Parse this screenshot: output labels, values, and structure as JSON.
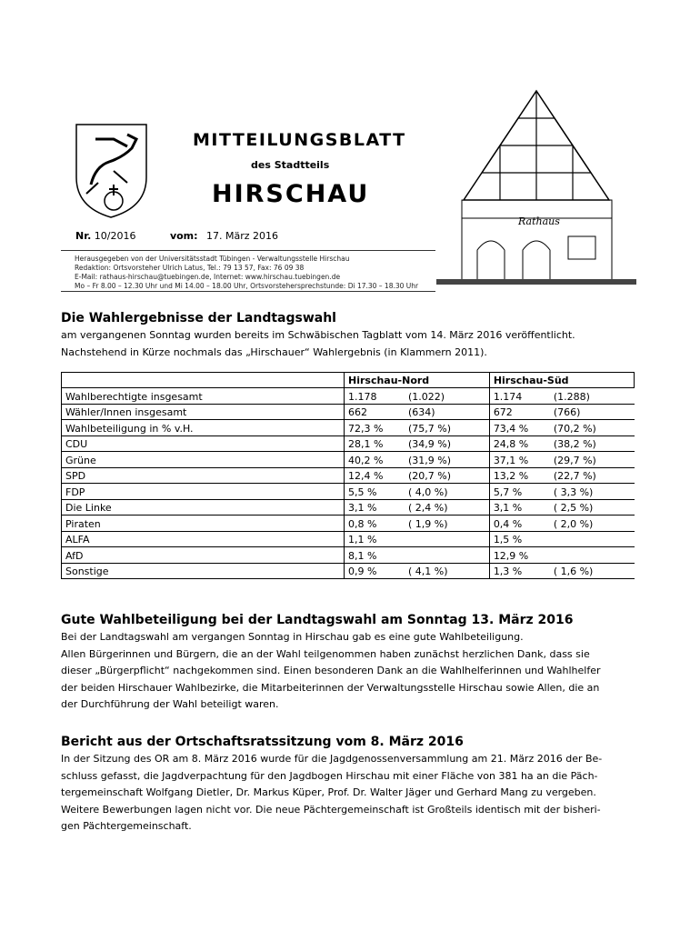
{
  "header": {
    "title": "MITTEILUNGSBLATT",
    "subtitle": "des Stadtteils",
    "town": "HIRSCHAU",
    "nr_label": "Nr.",
    "nr": "10/2016",
    "vom_label": "vom:",
    "date": "17. März 2016",
    "townhall_sign": "Rathaus",
    "imprint": [
      "Herausgegeben von der Universitätsstadt Tübingen - Verwaltungsstelle Hirschau",
      "Redaktion: Ortsvorsteher Ulrich Latus, Tel.: 79 13 57, Fax: 76 09 38",
      "E-Mail: rathaus-hirschau@tuebingen.de, Internet: www.hirschau.tuebingen.de",
      "Mo – Fr 8.00 – 12.30 Uhr und Mi 14.00 – 18.00 Uhr, Ortsvorstehersprechstunde: Di 17.30 – 18.30 Uhr"
    ]
  },
  "section1": {
    "heading": "Die Wahlergebnisse der Landtagswahl",
    "lines": [
      "am vergangenen Sonntag wurden bereits im Schwäbischen Tagblatt vom 14. März 2016 veröffentlicht.",
      "Nachstehend in Kürze nochmals das „Hirschauer“ Wahlergebnis (in Klammern 2011)."
    ]
  },
  "table": {
    "headers": [
      "",
      "Hirschau-Nord",
      "Hirschau-Süd"
    ],
    "rows": [
      [
        "Wahlberechtigte insgesamt",
        "1.178",
        "(1.022)",
        "1.174",
        "(1.288)"
      ],
      [
        "Wähler/Innen insgesamt",
        "662",
        "(634)",
        "672",
        "(766)"
      ],
      [
        "Wahlbeteiligung in % v.H.",
        "72,3 %",
        "(75,7 %)",
        "73,4 %",
        "(70,2 %)"
      ],
      [
        "CDU",
        "28,1 %",
        "(34,9 %)",
        "24,8 %",
        "(38,2 %)"
      ],
      [
        "Grüne",
        "40,2 %",
        "(31,9 %)",
        "37,1 %",
        "(29,7 %)"
      ],
      [
        "SPD",
        "12,4 %",
        "(20,7 %)",
        "13,2 %",
        "(22,7 %)"
      ],
      [
        "FDP",
        "5,5 %",
        "( 4,0 %)",
        "5,7 %",
        "( 3,3 %)"
      ],
      [
        "Die Linke",
        "3,1 %",
        "( 2,4 %)",
        "3,1 %",
        "( 2,5 %)"
      ],
      [
        "Piraten",
        "0,8 %",
        "( 1,9 %)",
        "0,4 %",
        "( 2,0 %)"
      ],
      [
        "ALFA",
        "1,1 %",
        "",
        "1,5 %",
        ""
      ],
      [
        "AfD",
        "8,1 %",
        "",
        "12,9 %",
        ""
      ],
      [
        "Sonstige",
        "0,9 %",
        "( 4,1 %)",
        "1,3 %",
        "( 1,6 %)"
      ]
    ]
  },
  "section2": {
    "heading": "Gute Wahlbeteiligung bei der Landtagswahl am Sonntag 13. März 2016",
    "lines": [
      "Bei der Landtagswahl am vergangen Sonntag in Hirschau gab es eine gute Wahlbeteiligung.",
      "Allen Bürgerinnen und Bürgern, die an der Wahl teilgenommen haben zunächst herzlichen Dank, dass sie",
      "dieser „Bürgerpflicht“ nachgekommen sind. Einen besonderen Dank an die Wahlhelferinnen und Wahlhelfer",
      "der beiden Hirschauer Wahlbezirke, die Mitarbeiterinnen der Verwaltungsstelle Hirschau sowie Allen, die an",
      "der Durchführung der Wahl beteiligt waren."
    ]
  },
  "section3": {
    "heading": "Bericht aus der Ortschaftsratssitzung vom 8. März 2016",
    "lines": [
      "In der Sitzung des OR am 8. März 2016 wurde für die Jagdgenossenversammlung am 21. März 2016 der Be-",
      "schluss gefasst, die Jagdverpachtung für den Jagdbogen Hirschau mit einer Fläche von 381 ha an die Päch-",
      "tergemeinschaft Wolfgang Dietler, Dr. Markus Küper, Prof. Dr. Walter Jäger und Gerhard Mang zu vergeben.",
      "Weitere Bewerbungen lagen nicht vor. Die neue Pächtergemeinschaft ist Großteils identisch mit der bisheri-",
      "gen Pächtergemeinschaft."
    ]
  }
}
